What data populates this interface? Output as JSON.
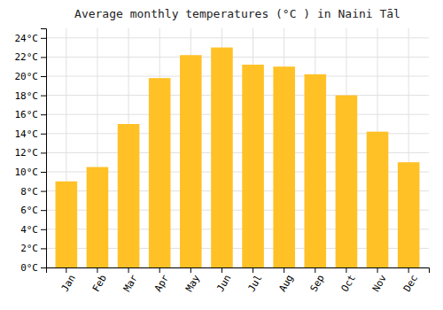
{
  "chart_data": {
    "type": "bar",
    "title": "Average monthly temperatures (°C ) in Naini Tāl",
    "categories": [
      "Jan",
      "Feb",
      "Mar",
      "Apr",
      "May",
      "Jun",
      "Jul",
      "Aug",
      "Sep",
      "Oct",
      "Nov",
      "Dec"
    ],
    "values": [
      9,
      10.5,
      15,
      19.8,
      22.2,
      23,
      21.2,
      21,
      20.2,
      18,
      14.2,
      11
    ],
    "color": "#FFC125",
    "ylim": [
      0,
      25
    ],
    "yticks": [
      {
        "value": 0,
        "label": "0°C"
      },
      {
        "value": 2,
        "label": "2°C"
      },
      {
        "value": 4,
        "label": "4°C"
      },
      {
        "value": 6,
        "label": "6°C"
      },
      {
        "value": 8,
        "label": "8°C"
      },
      {
        "value": 10,
        "label": "10°C"
      },
      {
        "value": 12,
        "label": "12°C"
      },
      {
        "value": 14,
        "label": "14°C"
      },
      {
        "value": 16,
        "label": "16°C"
      },
      {
        "value": 18,
        "label": "18°C"
      },
      {
        "value": 20,
        "label": "20°C"
      },
      {
        "value": 22,
        "label": "22°C"
      },
      {
        "value": 24,
        "label": "24°C"
      }
    ],
    "grid": true
  }
}
